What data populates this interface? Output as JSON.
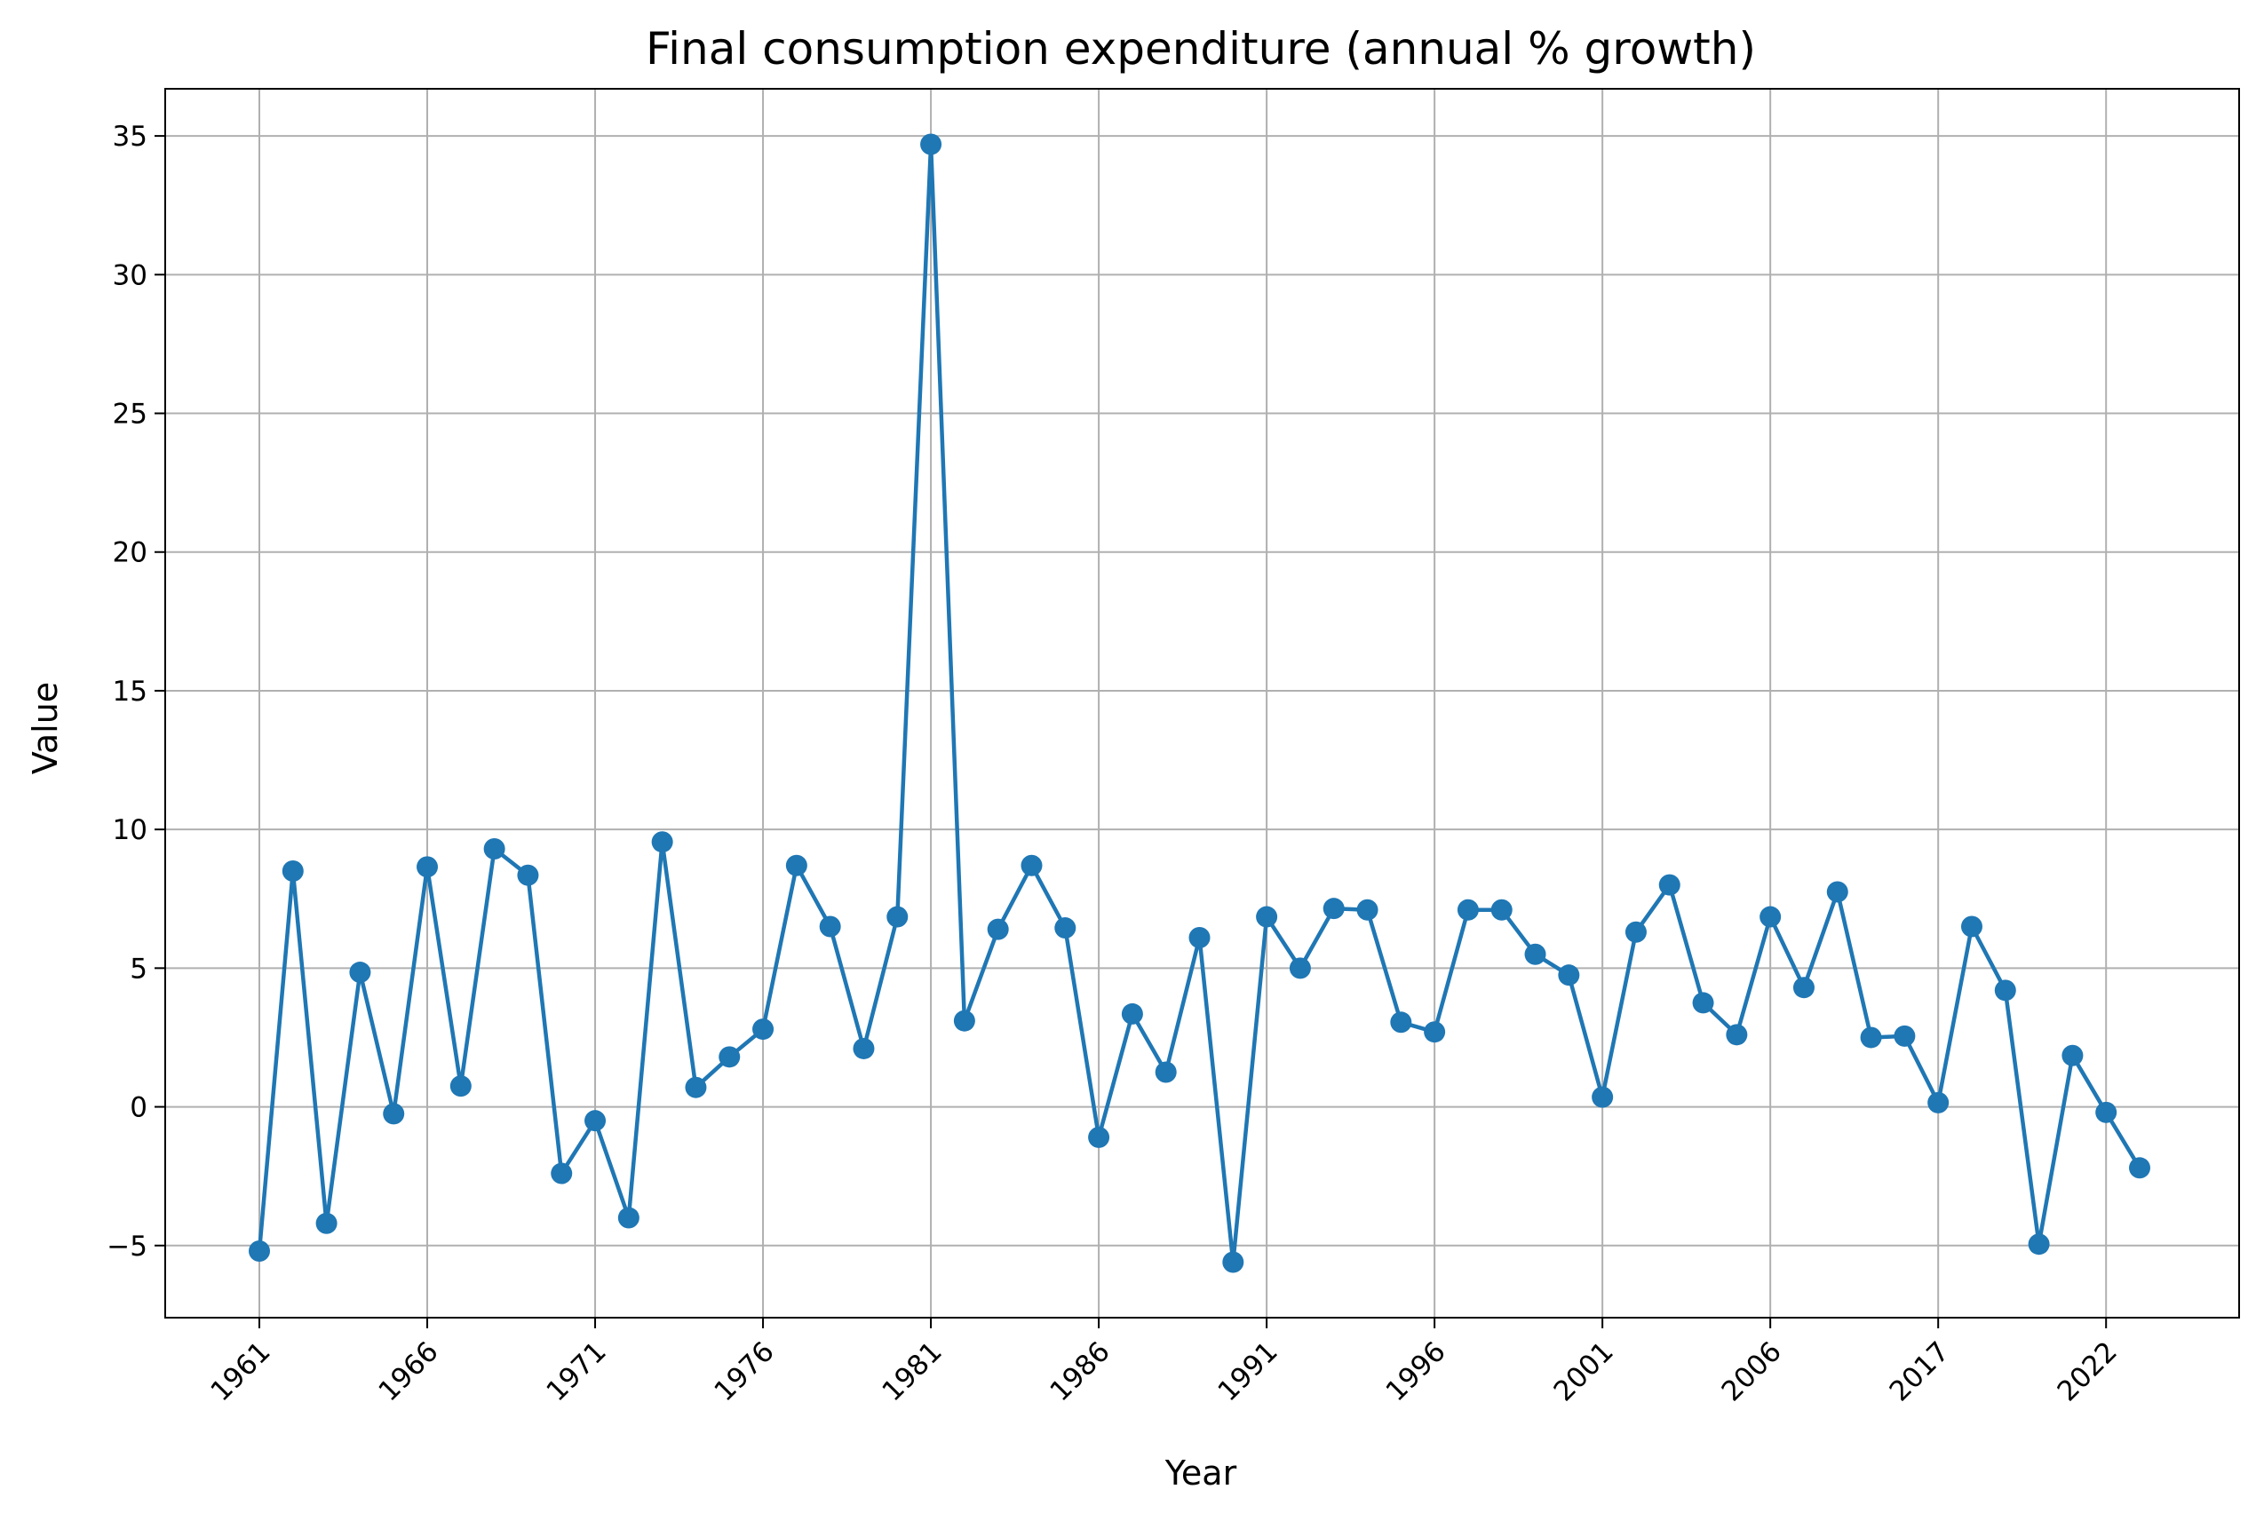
{
  "chart_data": {
    "type": "line",
    "title": "Final consumption expenditure (annual % growth)",
    "xlabel": "Year",
    "ylabel": "Value",
    "ylim": [
      -7.6,
      36.7
    ],
    "yticks": [
      -5,
      0,
      5,
      10,
      15,
      20,
      25,
      30,
      35
    ],
    "xtick_labels": [
      "1961",
      "1966",
      "1971",
      "1976",
      "1981",
      "1986",
      "1991",
      "1996",
      "2001",
      "2006",
      "2017",
      "2022"
    ],
    "xtick_every": 5,
    "grid": true,
    "line_color": "#1f77b4",
    "marker": "circle",
    "series": [
      {
        "values": [
          -5.2,
          8.5,
          -4.2,
          4.85,
          -0.25,
          8.65,
          0.75,
          9.3,
          8.35,
          -2.4,
          -0.5,
          -4.0,
          9.55,
          0.7,
          1.8,
          2.8,
          8.7,
          6.5,
          2.1,
          6.85,
          34.7,
          3.1,
          6.4,
          8.7,
          6.45,
          -1.1,
          3.35,
          1.25,
          6.1,
          -5.6,
          6.85,
          5.0,
          7.15,
          7.1,
          3.05,
          2.7,
          7.1,
          7.1,
          5.5,
          4.75,
          0.35,
          6.3,
          8.0,
          3.75,
          2.6,
          6.85,
          4.3,
          7.75,
          2.5,
          2.55,
          0.15,
          6.5,
          4.2,
          -4.95,
          1.85,
          -0.2,
          -2.2
        ]
      }
    ]
  }
}
